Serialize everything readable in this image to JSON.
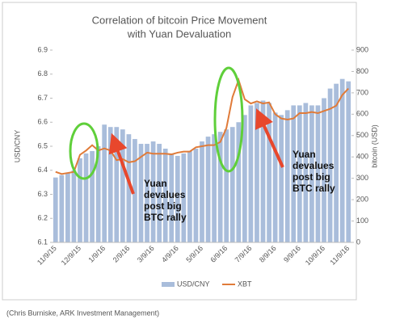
{
  "chart_data": {
    "type": "bar_line",
    "title": [
      "Correlation of bitcoin Price Movement",
      "with Yuan Devaluation"
    ],
    "ylabel": "USD/CNY",
    "y2label": "bitcoin (USD)",
    "categories": [
      "11/9/15",
      null,
      null,
      null,
      "12/9/15",
      null,
      null,
      null,
      "1/9/16",
      null,
      null,
      null,
      "2/9/16",
      null,
      null,
      null,
      "3/9/16",
      null,
      null,
      null,
      "4/9/16",
      null,
      null,
      null,
      "5/9/16",
      null,
      null,
      null,
      "6/9/16",
      null,
      null,
      null,
      "7/9/16",
      null,
      null,
      null,
      "8/9/16",
      null,
      null,
      null,
      "9/9/16",
      null,
      null,
      null,
      "10/9/16",
      null,
      null,
      null,
      "11/9/16"
    ],
    "series": [
      {
        "name": "USD/CNY",
        "color": "#a9bddb",
        "type": "bar",
        "values": [
          6.37,
          6.38,
          6.39,
          6.4,
          6.45,
          6.47,
          6.48,
          6.5,
          6.59,
          6.58,
          6.58,
          6.57,
          6.55,
          6.53,
          6.51,
          6.51,
          6.52,
          6.51,
          6.49,
          6.47,
          6.46,
          6.47,
          6.48,
          6.49,
          6.52,
          6.54,
          6.55,
          6.56,
          6.57,
          6.58,
          6.6,
          6.63,
          6.67,
          6.68,
          6.69,
          6.68,
          6.64,
          6.63,
          6.65,
          6.67,
          6.67,
          6.68,
          6.67,
          6.67,
          6.7,
          6.74,
          6.76,
          6.78,
          6.77
        ]
      },
      {
        "name": "XBT",
        "color": "#e07b39",
        "type": "line",
        "axis": "y2",
        "values": [
          330,
          320,
          325,
          330,
          410,
          430,
          455,
          430,
          440,
          430,
          385,
          390,
          375,
          380,
          400,
          420,
          415,
          415,
          415,
          412,
          420,
          425,
          425,
          445,
          450,
          455,
          455,
          470,
          535,
          680,
          760,
          670,
          650,
          660,
          650,
          655,
          600,
          580,
          575,
          580,
          605,
          605,
          610,
          605,
          615,
          625,
          640,
          690,
          720
        ]
      }
    ],
    "ylim": [
      6.1,
      6.9
    ],
    "yticks": [
      6.1,
      6.2,
      6.3,
      6.4,
      6.5,
      6.6,
      6.7,
      6.8,
      6.9
    ],
    "y2lim": [
      0,
      900
    ],
    "y2ticks": [
      0,
      100,
      200,
      300,
      400,
      500,
      600,
      700,
      800,
      900
    ],
    "legend": "bottom",
    "annotations": [
      [
        "Yuan",
        "devalues",
        "post big",
        "BTC rally"
      ],
      [
        "Yuan",
        "devalues",
        "post big",
        "BTC rally"
      ]
    ],
    "source": "(Chris Burniske, ARK Investment Management)"
  }
}
